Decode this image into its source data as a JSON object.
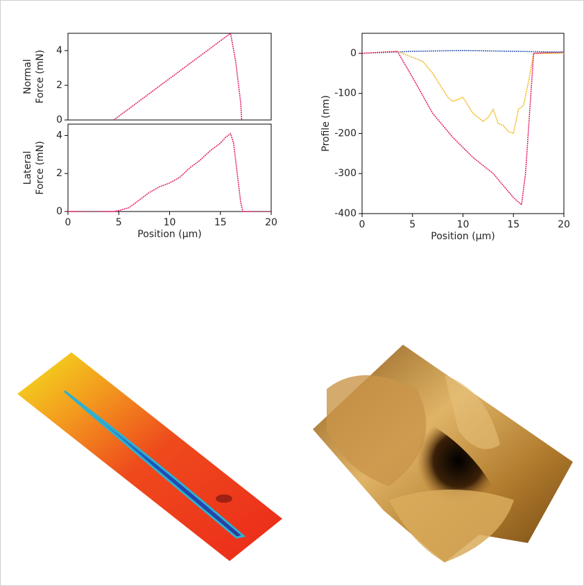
{
  "chart_data": [
    {
      "type": "line",
      "ylabel_lines": [
        "Normal",
        "Force  (mN)"
      ],
      "xlim": [
        0,
        20
      ],
      "ylim": [
        0,
        5
      ],
      "yticks": [
        0,
        2,
        4
      ],
      "series": [
        {
          "color": "#e0206e",
          "x": [
            4.5,
            6,
            8,
            10,
            12,
            14,
            16,
            16.5,
            17,
            17.1
          ],
          "values": [
            0,
            0.65,
            1.52,
            2.39,
            3.26,
            4.13,
            5,
            3.4,
            1.0,
            0
          ]
        }
      ]
    },
    {
      "type": "line",
      "ylabel_lines": [
        "Lateral",
        "Force  (mN)"
      ],
      "xlabel": "Position (µm)",
      "xlim": [
        0,
        20
      ],
      "ylim": [
        0,
        4.6
      ],
      "xticks": [
        0,
        5,
        10,
        15,
        20
      ],
      "yticks": [
        0,
        2,
        4
      ],
      "series": [
        {
          "color": "#e0206e",
          "x": [
            0,
            2,
            4.5,
            5,
            6,
            7,
            8,
            9,
            10,
            11,
            12,
            13,
            14,
            15,
            15.5,
            16,
            16.3,
            16.7,
            17,
            17.2,
            20
          ],
          "values": [
            0,
            0,
            0,
            0.05,
            0.2,
            0.6,
            1.0,
            1.3,
            1.5,
            1.8,
            2.3,
            2.7,
            3.2,
            3.6,
            3.9,
            4.1,
            3.6,
            1.8,
            0.5,
            0,
            0
          ]
        }
      ]
    },
    {
      "type": "line",
      "ylabel": "Profile (nm)",
      "xlabel": "Position (µm)",
      "xlim": [
        0,
        20
      ],
      "ylim": [
        -400,
        50
      ],
      "xticks": [
        0,
        5,
        10,
        15,
        20
      ],
      "yticks": [
        0,
        -100,
        -200,
        -300,
        -400
      ],
      "series": [
        {
          "color": "#3a5fb0",
          "x": [
            0,
            5,
            10,
            15,
            20
          ],
          "values": [
            0,
            5,
            7,
            5,
            3
          ]
        },
        {
          "color": "#f5b820",
          "x": [
            0,
            3.5,
            5,
            6,
            7,
            8,
            8.5,
            9,
            10,
            10.5,
            11,
            12,
            12.5,
            13,
            13.5,
            14,
            14.5,
            15,
            15.5,
            16,
            16.5,
            17,
            20
          ],
          "values": [
            0,
            5,
            -10,
            -20,
            -50,
            -90,
            -110,
            -120,
            -110,
            -130,
            -150,
            -170,
            -160,
            -140,
            -175,
            -180,
            -195,
            -200,
            -140,
            -130,
            -70,
            0,
            0
          ]
        },
        {
          "color": "#e0206e",
          "x": [
            0,
            3.5,
            5,
            7,
            9,
            11,
            13,
            14,
            15,
            15.8,
            16.2,
            16.6,
            17,
            20
          ],
          "values": [
            0,
            5,
            -60,
            -150,
            -210,
            -260,
            -300,
            -330,
            -360,
            -378,
            -300,
            -150,
            0,
            3
          ]
        }
      ]
    }
  ]
}
